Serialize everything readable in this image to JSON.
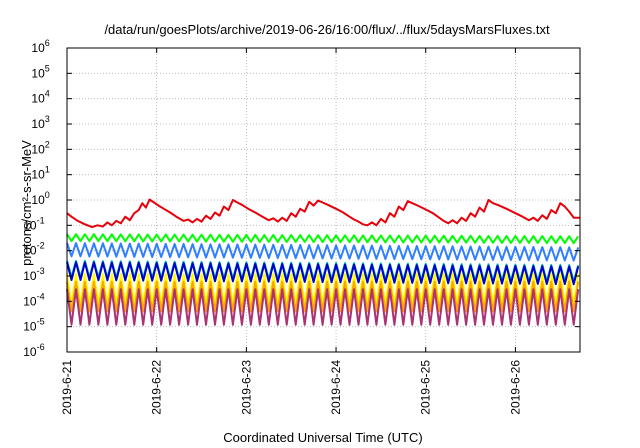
{
  "chart_data": {
    "type": "line",
    "title": "/data/run/goesPlots/archive/2019-06-26/16:00/flux/../flux/5daysMarsFluxes.txt",
    "xlabel": "Coordinated Universal Time (UTC)",
    "ylabel": "protons/cm²-s-sr-MeV",
    "y_scale": "log",
    "ylim": [
      1e-06,
      1000000.0
    ],
    "xlim": [
      0,
      5.72
    ],
    "x_ticks": [
      {
        "x": 0,
        "label": "2019-6-21"
      },
      {
        "x": 1,
        "label": "2019-6-22"
      },
      {
        "x": 2,
        "label": "2019-6-23"
      },
      {
        "x": 3,
        "label": "2019-6-24"
      },
      {
        "x": 4,
        "label": "2019-6-25"
      },
      {
        "x": 5,
        "label": "2019-6-26"
      }
    ],
    "y_ticks": [
      {
        "exp": 6,
        "base": "10",
        "sup": "6"
      },
      {
        "exp": 5,
        "base": "10",
        "sup": "5"
      },
      {
        "exp": 4,
        "base": "10",
        "sup": "4"
      },
      {
        "exp": 3,
        "base": "10",
        "sup": "3"
      },
      {
        "exp": 2,
        "base": "10",
        "sup": "2"
      },
      {
        "exp": 1,
        "base": "10",
        "sup": "1"
      },
      {
        "exp": 0,
        "base": "10",
        "sup": "0"
      },
      {
        "exp": -1,
        "base": "10",
        "sup": "-1"
      },
      {
        "exp": -2,
        "base": "10",
        "sup": "-2"
      },
      {
        "exp": -3,
        "base": "10",
        "sup": "-3"
      },
      {
        "exp": -4,
        "base": "10",
        "sup": "-4"
      },
      {
        "exp": -5,
        "base": "10",
        "sup": "-5"
      },
      {
        "exp": -6,
        "base": "10",
        "sup": "-6"
      }
    ],
    "grid": true,
    "legend": "none",
    "series": [
      {
        "color": "#e8000b",
        "values": [
          [
            0.0,
            0.3
          ],
          [
            0.05,
            0.22
          ],
          [
            0.12,
            0.15
          ],
          [
            0.2,
            0.11
          ],
          [
            0.28,
            0.085
          ],
          [
            0.34,
            0.1
          ],
          [
            0.4,
            0.09
          ],
          [
            0.45,
            0.13
          ],
          [
            0.5,
            0.1
          ],
          [
            0.55,
            0.15
          ],
          [
            0.6,
            0.12
          ],
          [
            0.65,
            0.22
          ],
          [
            0.7,
            0.16
          ],
          [
            0.75,
            0.3
          ],
          [
            0.8,
            0.4
          ],
          [
            0.84,
            0.75
          ],
          [
            0.88,
            0.5
          ],
          [
            0.92,
            1.05
          ],
          [
            0.97,
            0.8
          ],
          [
            1.02,
            0.6
          ],
          [
            1.08,
            0.45
          ],
          [
            1.15,
            0.32
          ],
          [
            1.22,
            0.22
          ],
          [
            1.3,
            0.15
          ],
          [
            1.35,
            0.17
          ],
          [
            1.4,
            0.13
          ],
          [
            1.45,
            0.18
          ],
          [
            1.5,
            0.14
          ],
          [
            1.55,
            0.24
          ],
          [
            1.6,
            0.18
          ],
          [
            1.65,
            0.32
          ],
          [
            1.7,
            0.24
          ],
          [
            1.75,
            0.55
          ],
          [
            1.8,
            0.4
          ],
          [
            1.85,
            1.0
          ],
          [
            1.9,
            0.8
          ],
          [
            1.96,
            0.62
          ],
          [
            2.02,
            0.45
          ],
          [
            2.1,
            0.32
          ],
          [
            2.18,
            0.22
          ],
          [
            2.25,
            0.16
          ],
          [
            2.3,
            0.19
          ],
          [
            2.35,
            0.14
          ],
          [
            2.4,
            0.2
          ],
          [
            2.45,
            0.15
          ],
          [
            2.5,
            0.3
          ],
          [
            2.55,
            0.22
          ],
          [
            2.6,
            0.45
          ],
          [
            2.65,
            0.35
          ],
          [
            2.7,
            0.85
          ],
          [
            2.75,
            0.6
          ],
          [
            2.8,
            0.95
          ],
          [
            2.85,
            0.8
          ],
          [
            2.92,
            0.62
          ],
          [
            3.0,
            0.45
          ],
          [
            3.08,
            0.32
          ],
          [
            3.15,
            0.22
          ],
          [
            3.2,
            0.17
          ],
          [
            3.25,
            0.14
          ],
          [
            3.3,
            0.11
          ],
          [
            3.35,
            0.1
          ],
          [
            3.4,
            0.13
          ],
          [
            3.45,
            0.1
          ],
          [
            3.5,
            0.18
          ],
          [
            3.55,
            0.13
          ],
          [
            3.6,
            0.3
          ],
          [
            3.65,
            0.22
          ],
          [
            3.7,
            0.55
          ],
          [
            3.75,
            0.4
          ],
          [
            3.8,
            0.9
          ],
          [
            3.85,
            0.75
          ],
          [
            3.92,
            0.58
          ],
          [
            4.0,
            0.42
          ],
          [
            4.08,
            0.3
          ],
          [
            4.15,
            0.2
          ],
          [
            4.2,
            0.15
          ],
          [
            4.25,
            0.12
          ],
          [
            4.3,
            0.16
          ],
          [
            4.35,
            0.12
          ],
          [
            4.4,
            0.2
          ],
          [
            4.45,
            0.15
          ],
          [
            4.5,
            0.3
          ],
          [
            4.55,
            0.22
          ],
          [
            4.6,
            0.5
          ],
          [
            4.65,
            0.35
          ],
          [
            4.7,
            1.0
          ],
          [
            4.75,
            0.75
          ],
          [
            4.82,
            0.6
          ],
          [
            4.9,
            0.45
          ],
          [
            5.0,
            0.3
          ],
          [
            5.08,
            0.22
          ],
          [
            5.15,
            0.16
          ],
          [
            5.2,
            0.2
          ],
          [
            5.25,
            0.15
          ],
          [
            5.3,
            0.25
          ],
          [
            5.35,
            0.18
          ],
          [
            5.4,
            0.4
          ],
          [
            5.45,
            0.3
          ],
          [
            5.5,
            0.75
          ],
          [
            5.55,
            0.55
          ],
          [
            5.6,
            0.35
          ],
          [
            5.65,
            0.2
          ],
          [
            5.72,
            0.2
          ]
        ]
      },
      {
        "color": "#00ff00",
        "values": [
          [
            0.0,
            0.045
          ],
          [
            5.72,
            0.025
          ]
        ],
        "high": 0.045,
        "low": 0.024,
        "period": 0.1,
        "drift": -0.1
      },
      {
        "color": "#2f7fff",
        "values": [
          [
            0.0,
            0.02
          ],
          [
            5.72,
            0.006
          ]
        ],
        "high": 0.02,
        "low": 0.006,
        "period": 0.1,
        "drift": -0.2
      },
      {
        "color": "#00c0c0",
        "values": [
          [
            0.0,
            0.004
          ],
          [
            5.72,
            0.0012
          ]
        ],
        "high": 0.004,
        "low": 0.0009,
        "period": 0.1,
        "drift": -0.2
      },
      {
        "color": "#0000c8",
        "values": [
          [
            0.0,
            0.0035
          ],
          [
            5.72,
            0.001
          ]
        ],
        "high": 0.0035,
        "low": 0.0007,
        "period": 0.1,
        "drift": -0.2
      },
      {
        "color": "#ffff00",
        "values": [
          [
            0.0,
            0.0012
          ],
          [
            5.72,
            0.0004
          ]
        ],
        "high": 0.0012,
        "low": 8e-05,
        "period": 0.1,
        "drift": 0.0
      },
      {
        "color": "#ffa500",
        "values": [
          [
            0.0,
            0.0006
          ],
          [
            5.72,
            0.0003
          ]
        ],
        "high": 0.0006,
        "low": 4e-05,
        "period": 0.1,
        "drift": 0.0
      },
      {
        "color": "#aa3377",
        "values": [
          [
            0.0,
            0.0003
          ],
          [
            5.72,
            0.0001
          ]
        ],
        "high": 0.0003,
        "low": 1.2e-05,
        "period": 0.1,
        "drift": 0.0
      }
    ]
  }
}
